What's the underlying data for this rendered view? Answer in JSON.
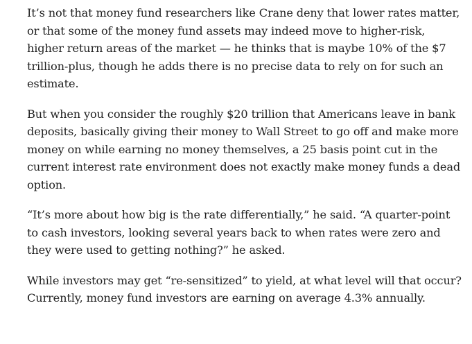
{
  "article": {
    "paragraphs": [
      "It’s not that money fund researchers like Crane deny that lower rates matter, or that some of the money fund assets may indeed move to higher-risk, higher return areas of the market — he thinks that is maybe 10% of the $7 trillion-plus, though he adds there is no precise data to rely on for such an estimate.",
      "But when you consider the roughly $20 trillion that Americans leave in bank deposits, basically giving their money to Wall Street to go off and make more money on while earning no money themselves, a 25 basis point cut in the current interest rate environment does not exactly make money funds a dead option.",
      "“It’s more about how big is the rate differentially,” he said. “A quarter-point to cash investors, looking several years back to when rates were zero and they were used to getting nothing?” he asked.",
      "While investors may get “re-sensitized” to yield, at what level will that occur? Currently, money fund investors are earning on average 4.3% annually."
    ]
  }
}
